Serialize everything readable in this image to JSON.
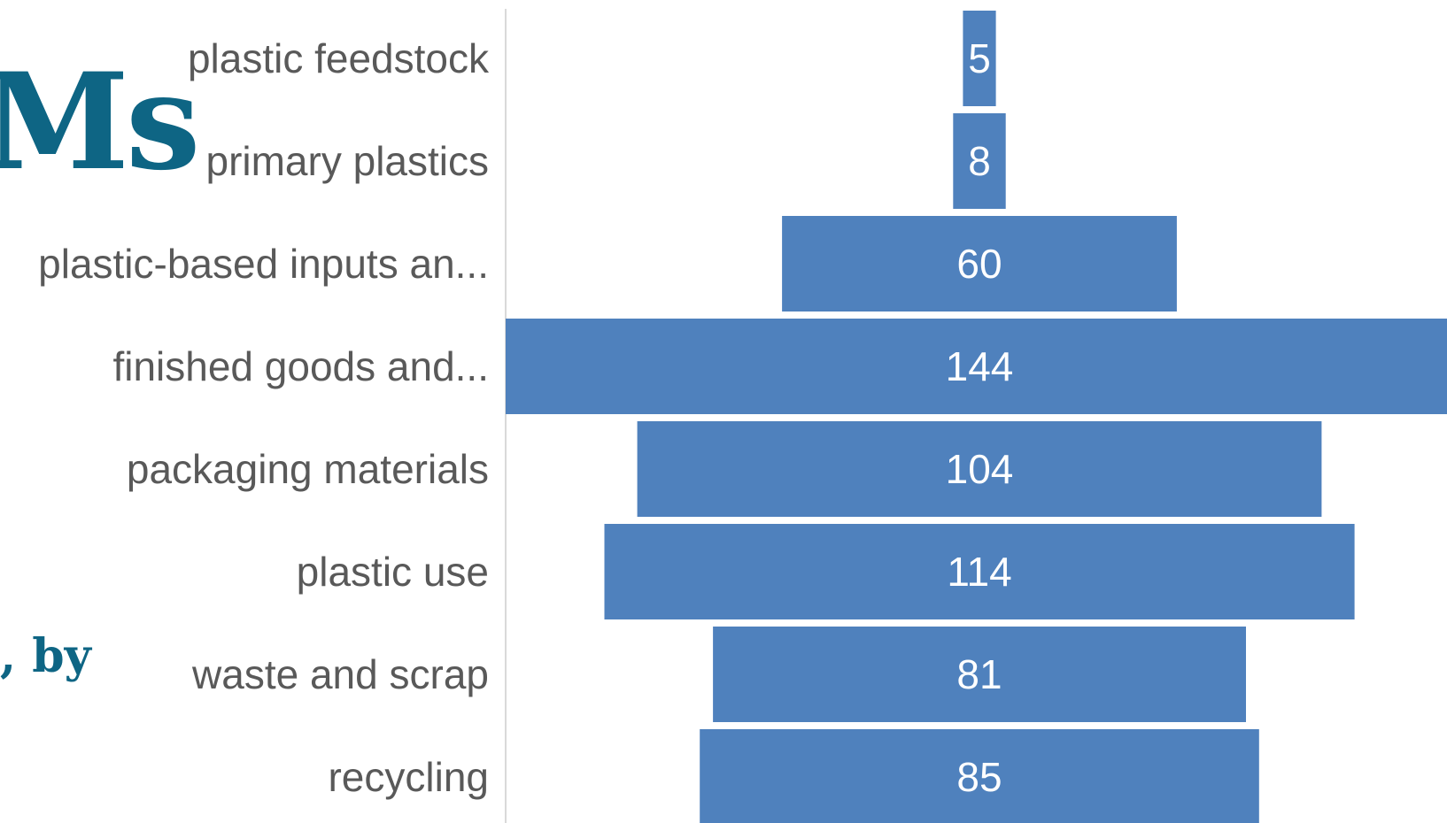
{
  "background_title": {
    "line1": "Ms",
    "line2": ", by",
    "color": "#0e6584"
  },
  "chart_data": {
    "type": "bar",
    "orientation": "horizontal-centered-funnel",
    "categories": [
      "plastic feedstock",
      "primary plastics",
      "plastic-based inputs an...",
      "finished goods and...",
      "packaging materials",
      "plastic use",
      "waste and scrap",
      "recycling"
    ],
    "values": [
      5,
      8,
      60,
      144,
      104,
      114,
      81,
      85
    ],
    "data_labels": [
      "5",
      "8",
      "60",
      "144",
      "104",
      "114",
      "81",
      "85"
    ],
    "xlim": [
      0,
      144
    ],
    "grid": false,
    "legend": "none",
    "bar_color": "#4f81bd",
    "label_color": "#595959",
    "data_label_color": "#ffffff",
    "axis_color": "#d9d9d9"
  }
}
